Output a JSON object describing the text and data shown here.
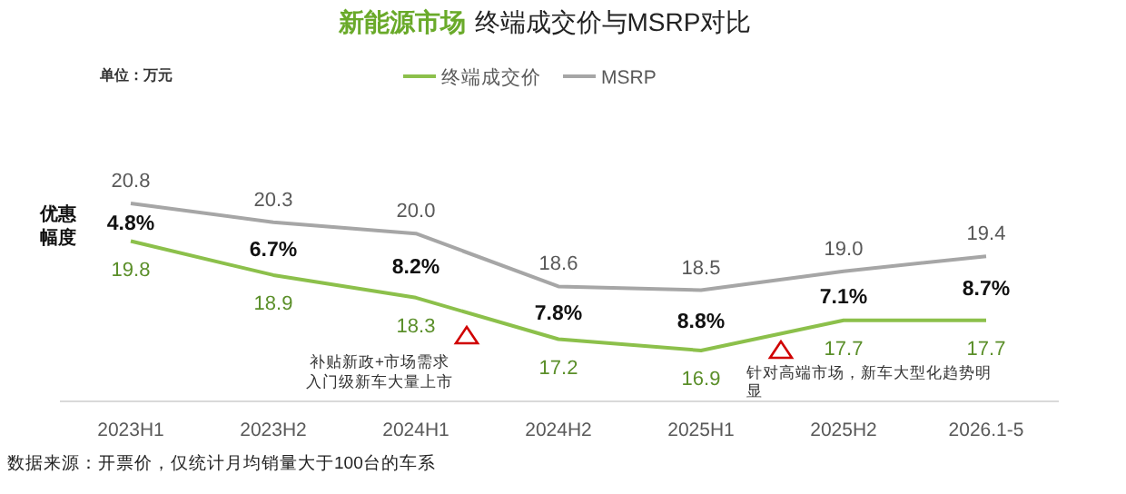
{
  "chart_data": {
    "type": "line",
    "title": "新能源市场",
    "subtitle": "终端成交价与MSRP对比",
    "categories": [
      "2023H1",
      "2023H2",
      "2024H1",
      "2024H2",
      "2025H1",
      "2025H2",
      "2026.1-5"
    ],
    "series": [
      {
        "name": "终端成交价",
        "color": "#8cc04b",
        "values": [
          19.8,
          18.9,
          18.3,
          17.2,
          16.9,
          17.7,
          17.7
        ],
        "value_labels": [
          "19.8",
          "18.9",
          "18.3",
          "17.2",
          "16.9",
          "17.7",
          "17.7"
        ]
      },
      {
        "name": "MSRP",
        "color": "#a6a6a6",
        "values": [
          20.8,
          20.3,
          20.0,
          18.6,
          18.5,
          19.0,
          19.4
        ],
        "value_labels": [
          "20.8",
          "20.3",
          "20.0",
          "18.6",
          "18.5",
          "19.0",
          "19.4"
        ]
      }
    ],
    "legend": "top",
    "marker": "none",
    "line_style": "solid",
    "annotations": [
      "单位：万元",
      "优惠幅度",
      "补贴新政+市场需求入门级新车大量上市",
      "针对高端市场，新车大型化趋势明显",
      "数据来源：开票价，仅统计月均销量大于100台的车系",
      "4.8%",
      "6.7%",
      "8.2%",
      "7.8%",
      "8.8%",
      "7.1%",
      "8.7%"
    ]
  }
}
